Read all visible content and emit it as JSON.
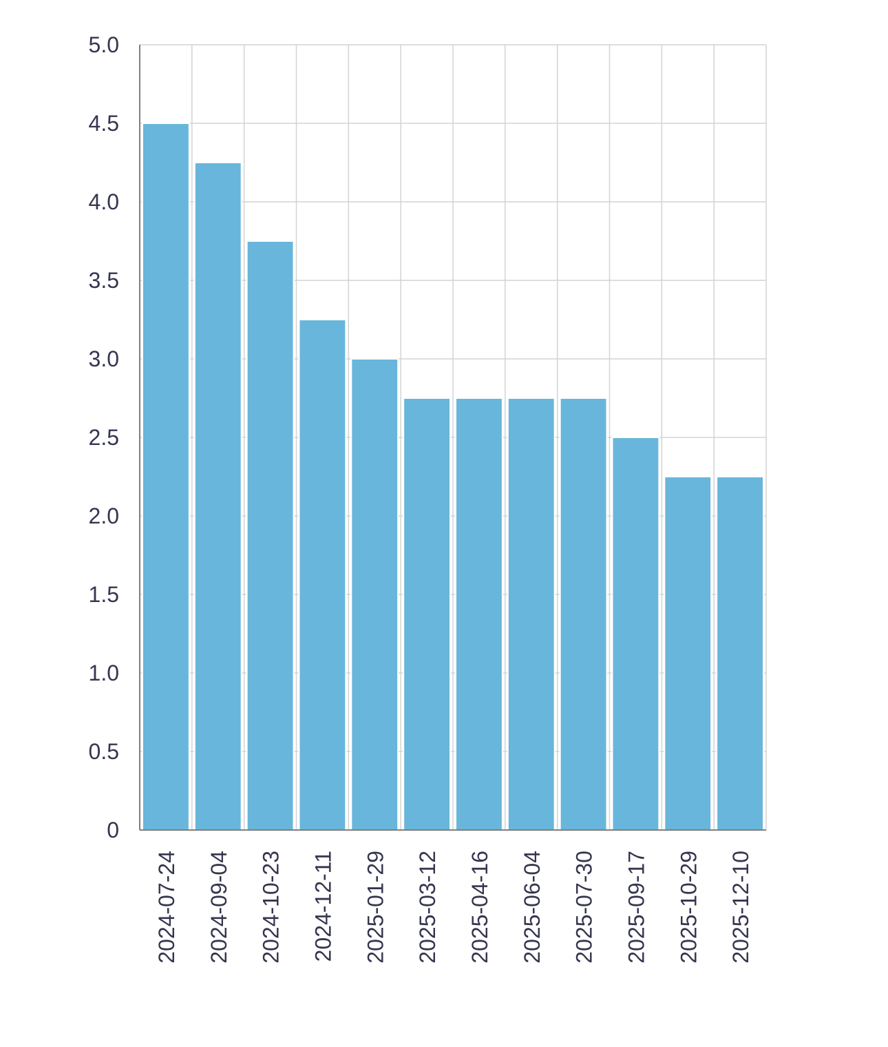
{
  "chart_data": {
    "type": "bar",
    "title": "",
    "xlabel": "",
    "ylabel": "",
    "categories": [
      "2024-07-24",
      "2024-09-04",
      "2024-10-23",
      "2024-12-11",
      "2025-01-29",
      "2025-03-12",
      "2025-04-16",
      "2025-06-04",
      "2025-07-30",
      "2025-09-17",
      "2025-10-29",
      "2025-12-10"
    ],
    "values": [
      4.5,
      4.25,
      3.75,
      3.25,
      3.0,
      2.75,
      2.75,
      2.75,
      2.75,
      2.5,
      2.25,
      2.25
    ],
    "ylim": [
      0,
      5
    ],
    "yticks": [
      0,
      0.5,
      1.0,
      1.5,
      2.0,
      2.5,
      3.0,
      3.5,
      4.0,
      4.5,
      5.0
    ],
    "ytick_labels": [
      "0",
      "0.5",
      "1.0",
      "1.5",
      "2.0",
      "2.5",
      "3.0",
      "3.5",
      "4.0",
      "4.5",
      "5.0"
    ],
    "grid": true,
    "legend": "none",
    "bar_color": "#68b6db",
    "grid_color": "#d3d3d3",
    "axis_color": "#7f7f7f",
    "text_color": "#35354f"
  }
}
